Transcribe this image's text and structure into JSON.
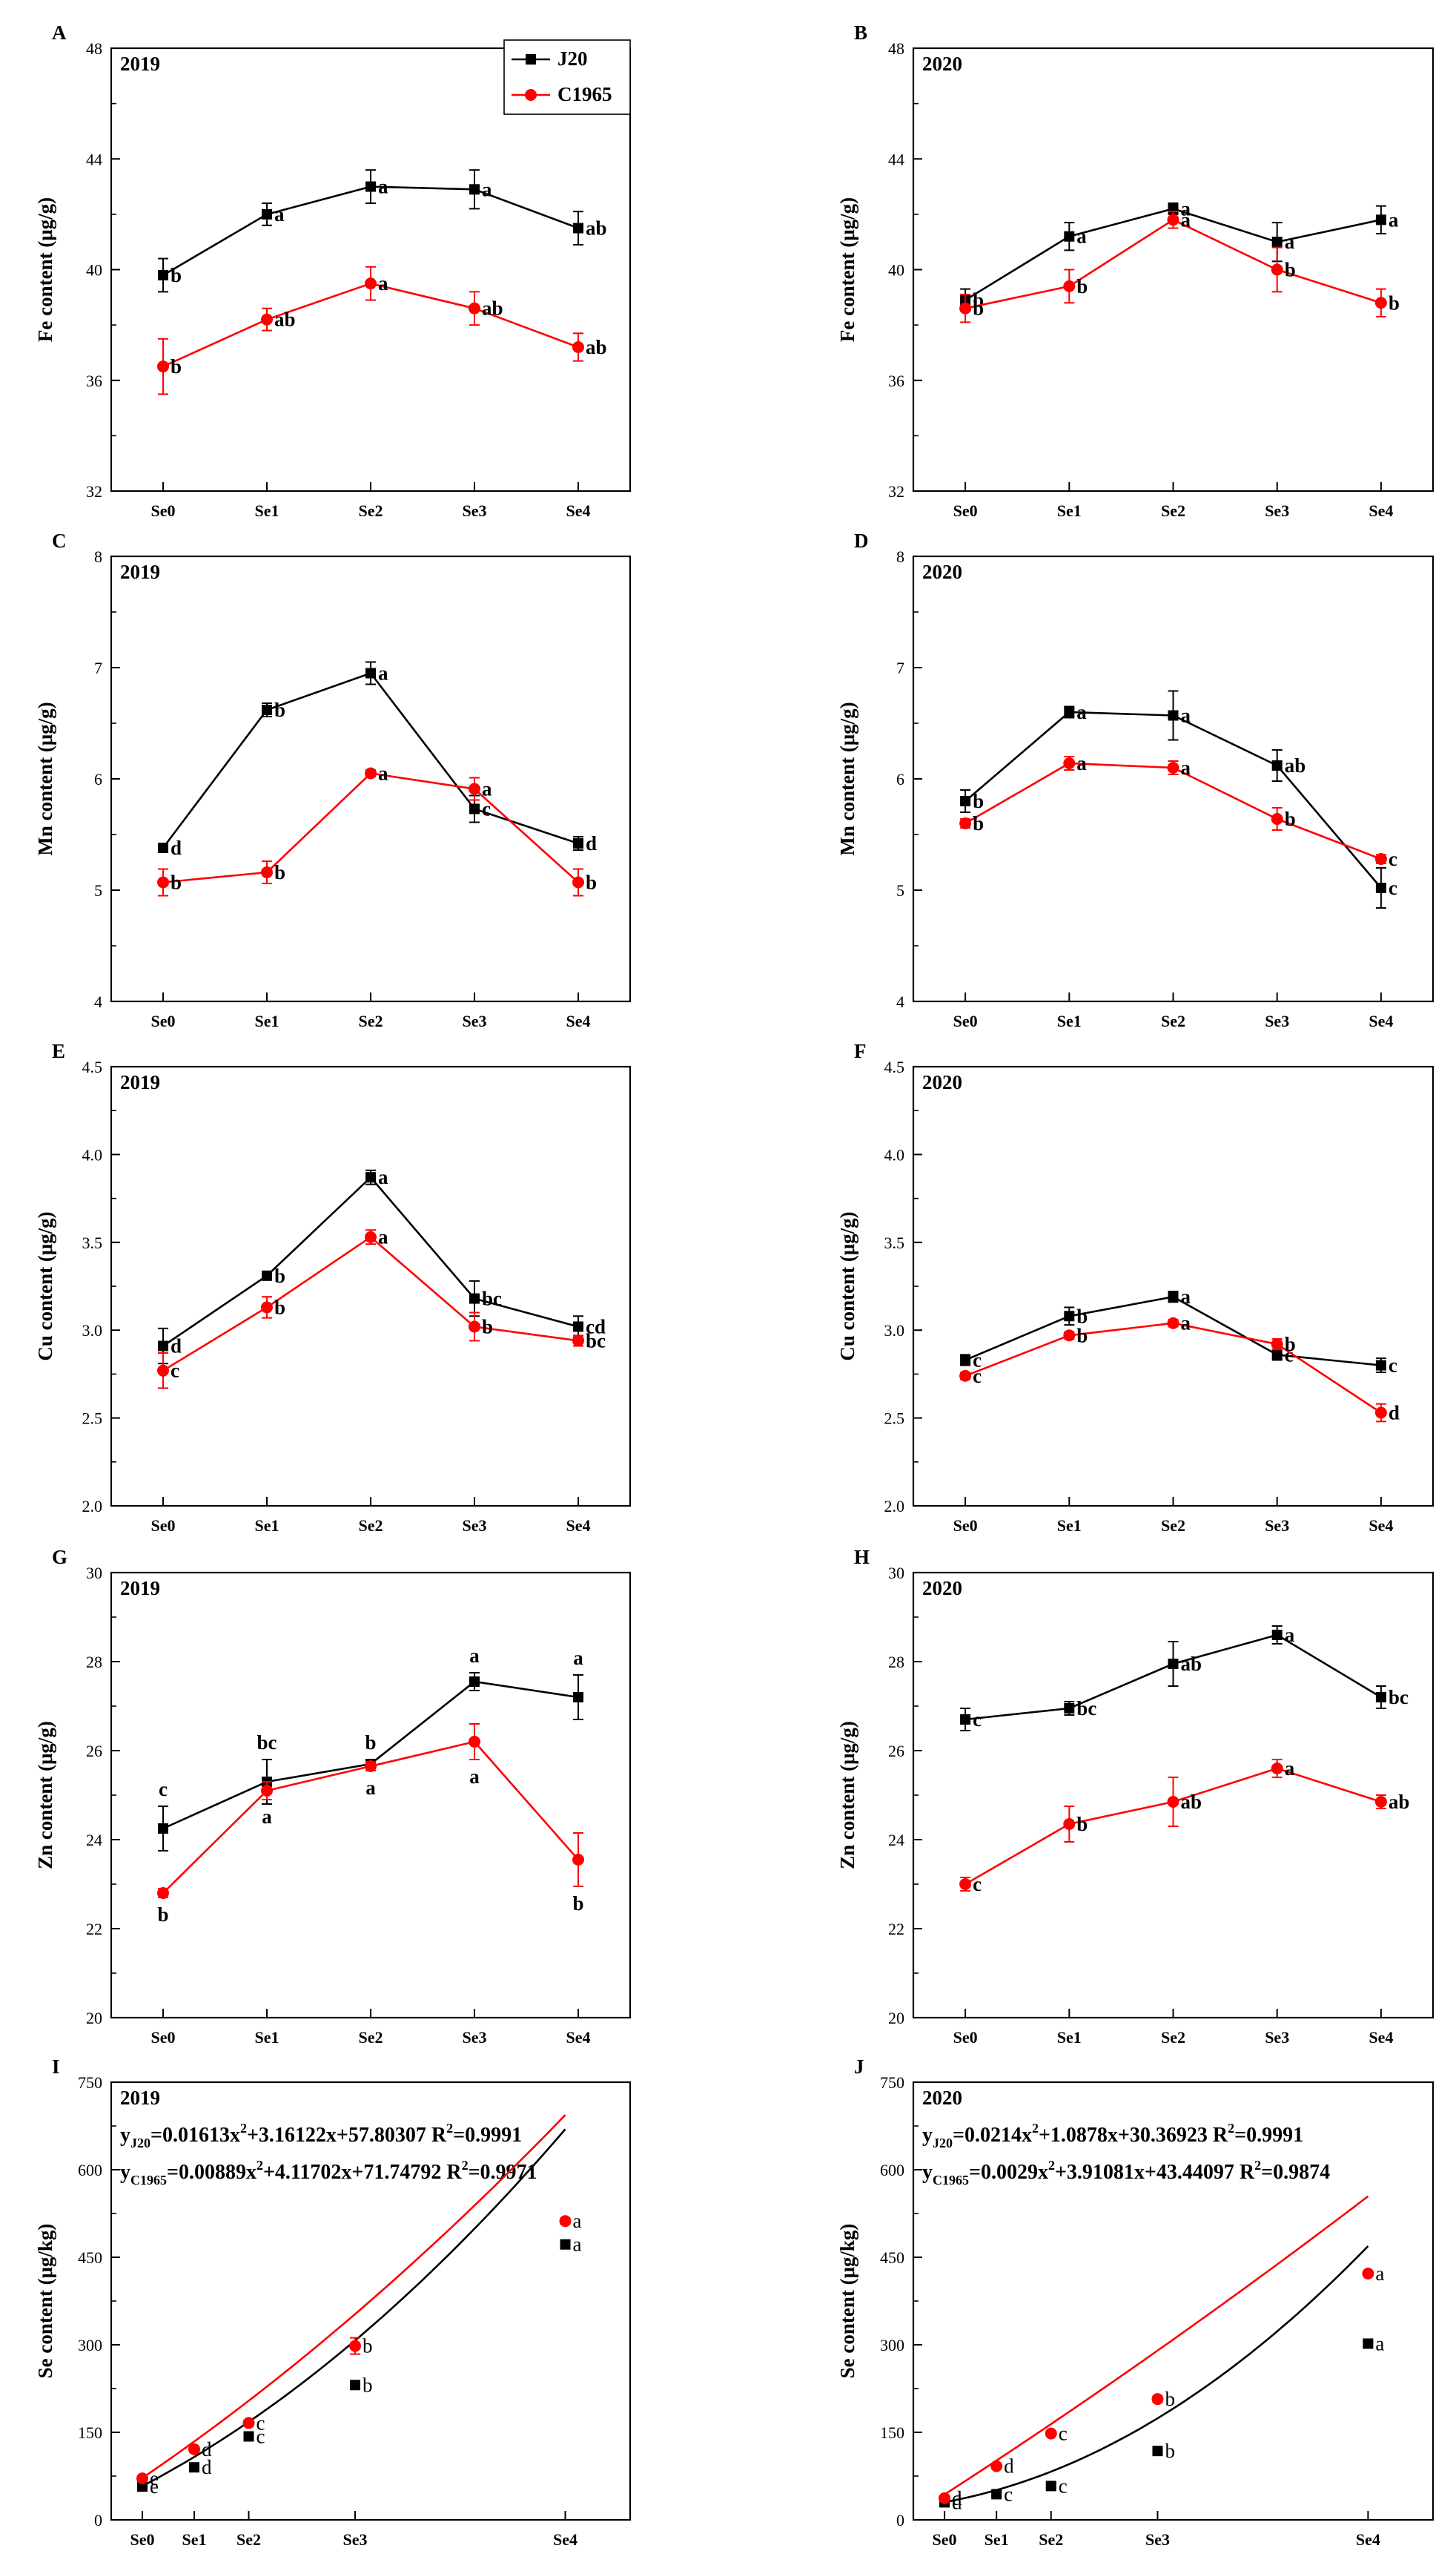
{
  "legend": [
    {
      "name": "J20",
      "color": "#000000",
      "marker": "square"
    },
    {
      "name": "C1965",
      "color": "#ff0000",
      "marker": "circle"
    }
  ],
  "chart_data": [
    {
      "id": "A",
      "panel_label": "A",
      "year_label": "2019",
      "type": "line",
      "ylabel": "Fe content (μg/g)",
      "categories": [
        "Se0",
        "Se1",
        "Se2",
        "Se3",
        "Se4"
      ],
      "ylim": [
        32,
        48
      ],
      "yticks": [
        "32",
        "36",
        "40",
        "44",
        "48"
      ],
      "series": [
        {
          "name": "J20",
          "values": [
            39.8,
            42.0,
            43.0,
            42.9,
            41.5
          ],
          "errors": [
            0.6,
            0.4,
            0.6,
            0.7,
            0.6
          ],
          "labels": [
            "b",
            "a",
            "a",
            "a",
            "ab"
          ]
        },
        {
          "name": "C1965",
          "values": [
            36.5,
            38.2,
            39.5,
            38.6,
            37.2
          ],
          "errors": [
            1.0,
            0.4,
            0.6,
            0.6,
            0.5
          ],
          "labels": [
            "b",
            "ab",
            "a",
            "ab",
            "ab"
          ]
        }
      ]
    },
    {
      "id": "B",
      "panel_label": "B",
      "year_label": "2020",
      "type": "line",
      "ylabel": "Fe content (μg/g)",
      "categories": [
        "Se0",
        "Se1",
        "Se2",
        "Se3",
        "Se4"
      ],
      "ylim": [
        32,
        48
      ],
      "yticks": [
        "32",
        "36",
        "40",
        "44",
        "48"
      ],
      "series": [
        {
          "name": "J20",
          "values": [
            38.9,
            41.2,
            42.2,
            41.0,
            41.8
          ],
          "errors": [
            0.4,
            0.5,
            0.2,
            0.7,
            0.5
          ],
          "labels": [
            "b",
            "a",
            "a",
            "a",
            "a"
          ]
        },
        {
          "name": "C1965",
          "values": [
            38.6,
            39.4,
            41.8,
            40.0,
            38.8
          ],
          "errors": [
            0.5,
            0.6,
            0.3,
            0.8,
            0.5
          ],
          "labels": [
            "b",
            "b",
            "a",
            "b",
            "b"
          ]
        }
      ]
    },
    {
      "id": "C",
      "panel_label": "C",
      "year_label": "2019",
      "type": "line",
      "ylabel": "Mn content (μg/g)",
      "categories": [
        "Se0",
        "Se1",
        "Se2",
        "Se3",
        "Se4"
      ],
      "ylim": [
        4,
        8
      ],
      "yticks": [
        "4",
        "5",
        "6",
        "7",
        "8"
      ],
      "series": [
        {
          "name": "J20",
          "values": [
            5.38,
            6.62,
            6.95,
            5.73,
            5.42
          ],
          "errors": [
            0.04,
            0.06,
            0.1,
            0.12,
            0.06
          ],
          "labels": [
            "d",
            "b",
            "a",
            "c",
            "d"
          ]
        },
        {
          "name": "C1965",
          "values": [
            5.07,
            5.16,
            6.05,
            5.91,
            5.07
          ],
          "errors": [
            0.12,
            0.1,
            0.03,
            0.1,
            0.12
          ],
          "labels": [
            "b",
            "b",
            "a",
            "a",
            "b"
          ]
        }
      ]
    },
    {
      "id": "D",
      "panel_label": "D",
      "year_label": "2020",
      "type": "line",
      "ylabel": "Mn content (μg/g)",
      "categories": [
        "Se0",
        "Se1",
        "Se2",
        "Se3",
        "Se4"
      ],
      "ylim": [
        4,
        8
      ],
      "yticks": [
        "4",
        "5",
        "6",
        "7",
        "8"
      ],
      "series": [
        {
          "name": "J20",
          "values": [
            5.8,
            6.6,
            6.57,
            6.12,
            5.02
          ],
          "errors": [
            0.1,
            0.05,
            0.22,
            0.14,
            0.18
          ],
          "labels": [
            "b",
            "a",
            "a",
            "ab",
            "c"
          ]
        },
        {
          "name": "C1965",
          "values": [
            5.6,
            6.14,
            6.1,
            5.64,
            5.28
          ],
          "errors": [
            0.04,
            0.06,
            0.06,
            0.1,
            0.04
          ],
          "labels": [
            "b",
            "a",
            "a",
            "b",
            "c"
          ]
        }
      ]
    },
    {
      "id": "E",
      "panel_label": "E",
      "year_label": "2019",
      "type": "line",
      "ylabel": "Cu content (μg/g)",
      "categories": [
        "Se0",
        "Se1",
        "Se2",
        "Se3",
        "Se4"
      ],
      "ylim": [
        2.0,
        4.5
      ],
      "yticks": [
        "2.0",
        "2.5",
        "3.0",
        "3.5",
        "4.0",
        "4.5"
      ],
      "series": [
        {
          "name": "J20",
          "values": [
            2.91,
            3.31,
            3.87,
            3.18,
            3.02
          ],
          "errors": [
            0.1,
            0.02,
            0.04,
            0.1,
            0.06
          ],
          "labels": [
            "d",
            "b",
            "a",
            "bc",
            "cd"
          ]
        },
        {
          "name": "C1965",
          "values": [
            2.77,
            3.13,
            3.53,
            3.02,
            2.94
          ],
          "errors": [
            0.1,
            0.06,
            0.04,
            0.08,
            0.03
          ],
          "labels": [
            "c",
            "b",
            "a",
            "b",
            "bc"
          ]
        }
      ]
    },
    {
      "id": "F",
      "panel_label": "F",
      "year_label": "2020",
      "type": "line",
      "ylabel": "Cu content (μg/g)",
      "categories": [
        "Se0",
        "Se1",
        "Se2",
        "Se3",
        "Se4"
      ],
      "ylim": [
        2.0,
        4.5
      ],
      "yticks": [
        "2.0",
        "2.5",
        "3.0",
        "3.5",
        "4.0",
        "4.5"
      ],
      "series": [
        {
          "name": "J20",
          "values": [
            2.83,
            3.08,
            3.19,
            2.86,
            2.8
          ],
          "errors": [
            0.03,
            0.05,
            0.03,
            0.03,
            0.04
          ],
          "labels": [
            "c",
            "b",
            "a",
            "c",
            "c"
          ]
        },
        {
          "name": "C1965",
          "values": [
            2.74,
            2.97,
            3.04,
            2.92,
            2.53
          ],
          "errors": [
            0.02,
            0.02,
            0.02,
            0.03,
            0.05
          ],
          "labels": [
            "c",
            "b",
            "a",
            "b",
            "d"
          ]
        }
      ]
    },
    {
      "id": "G",
      "panel_label": "G",
      "year_label": "2019",
      "type": "line",
      "ylabel": "Zn content (μg/g)",
      "categories": [
        "Se0",
        "Se1",
        "Se2",
        "Se3",
        "Se4"
      ],
      "ylim": [
        20,
        30
      ],
      "yticks": [
        "20",
        "22",
        "24",
        "26",
        "28",
        "30"
      ],
      "series": [
        {
          "name": "J20",
          "values": [
            24.25,
            25.3,
            25.7,
            27.55,
            27.2
          ],
          "errors": [
            0.5,
            0.5,
            0.1,
            0.2,
            0.5
          ],
          "labels": [
            "c",
            "bc",
            "b",
            "a",
            "a"
          ],
          "label_pos": [
            "above",
            "above",
            "above",
            "above",
            "above"
          ]
        },
        {
          "name": "C1965",
          "values": [
            22.8,
            25.1,
            25.65,
            26.2,
            23.55
          ],
          "errors": [
            0.1,
            0.2,
            0.1,
            0.4,
            0.6
          ],
          "labels": [
            "b",
            "a",
            "a",
            "a",
            "b"
          ],
          "label_pos": [
            "below",
            "below",
            "below",
            "below",
            "below"
          ]
        }
      ]
    },
    {
      "id": "H",
      "panel_label": "H",
      "year_label": "2020",
      "type": "line",
      "ylabel": "Zn content (μg/g)",
      "categories": [
        "Se0",
        "Se1",
        "Se2",
        "Se3",
        "Se4"
      ],
      "ylim": [
        20,
        30
      ],
      "yticks": [
        "20",
        "22",
        "24",
        "26",
        "28",
        "30"
      ],
      "series": [
        {
          "name": "J20",
          "values": [
            26.7,
            26.95,
            27.95,
            28.6,
            27.2
          ],
          "errors": [
            0.25,
            0.15,
            0.5,
            0.2,
            0.25
          ],
          "labels": [
            "c",
            "bc",
            "ab",
            "a",
            "bc"
          ]
        },
        {
          "name": "C1965",
          "values": [
            23.0,
            24.35,
            24.85,
            25.6,
            24.85
          ],
          "errors": [
            0.15,
            0.4,
            0.55,
            0.2,
            0.15
          ],
          "labels": [
            "c",
            "b",
            "ab",
            "a",
            "ab"
          ]
        }
      ]
    },
    {
      "id": "I",
      "panel_label": "I",
      "year_label": "2019",
      "type": "scatter",
      "ylabel": "Se content (μg/kg)",
      "categories": [
        "Se0",
        "Se1",
        "Se2",
        "Se3",
        "Se4"
      ],
      "x": [
        0,
        15,
        30,
        60,
        120
      ],
      "ylim": [
        0,
        750
      ],
      "yticks": [
        "0",
        "150",
        "300",
        "450",
        "600",
        "750"
      ],
      "equations": [
        {
          "lhs": "y",
          "sub": "J20",
          "rhs": "=0.01613x",
          "sup": "2",
          "rest": "+3.16122x+57.80307 R",
          "sup2": "2",
          "tail": "=0.9991"
        },
        {
          "lhs": "y",
          "sub": "C1965",
          "rhs": "=0.00889x",
          "sup": "2",
          "rest": "+4.11702x+71.74792 R",
          "sup2": "2",
          "tail": "=0.9971"
        }
      ],
      "series": [
        {
          "name": "J20",
          "values": [
            57,
            90,
            143,
            231,
            472
          ],
          "errors": [
            4,
            4,
            5,
            5,
            4
          ],
          "labels": [
            "e",
            "d",
            "c",
            "b",
            "a"
          ],
          "fit": [
            0.01613,
            3.16122,
            57.80307
          ]
        },
        {
          "name": "C1965",
          "values": [
            71,
            121,
            166,
            298,
            512
          ],
          "errors": [
            4,
            5,
            5,
            14,
            5
          ],
          "labels": [
            "e",
            "d",
            "c",
            "b",
            "a"
          ],
          "fit": [
            0.00889,
            4.11702,
            71.74792
          ]
        }
      ]
    },
    {
      "id": "J",
      "panel_label": "J",
      "year_label": "2020",
      "type": "scatter",
      "ylabel": "Se content (μg/kg)",
      "categories": [
        "Se0",
        "Se1",
        "Se2",
        "Se3",
        "Se4"
      ],
      "x": [
        0,
        15,
        30,
        60,
        120
      ],
      "ylim": [
        0,
        750
      ],
      "yticks": [
        "0",
        "150",
        "300",
        "450",
        "600",
        "750"
      ],
      "equations": [
        {
          "lhs": "y",
          "sub": "J20",
          "rhs": "=0.0214x",
          "sup": "2",
          "rest": "+1.0878x+30.36923 R",
          "sup2": "2",
          "tail": "=0.9991"
        },
        {
          "lhs": "y",
          "sub": "C1965",
          "rhs": "=0.0029x",
          "sup": "2",
          "rest": "+3.91081x+43.44097 R",
          "sup2": "2",
          "tail": "=0.9874"
        }
      ],
      "series": [
        {
          "name": "J20",
          "values": [
            30,
            44,
            58,
            118,
            302
          ],
          "errors": [
            3,
            3,
            3,
            5,
            4
          ],
          "labels": [
            "d",
            "c",
            "c",
            "b",
            "a"
          ],
          "fit": [
            0.0214,
            1.0878,
            30.36923
          ]
        },
        {
          "name": "C1965",
          "values": [
            37,
            92,
            148,
            207,
            422
          ],
          "errors": [
            3,
            4,
            4,
            5,
            4
          ],
          "labels": [
            "d",
            "d",
            "c",
            "b",
            "a"
          ],
          "fit": [
            0.0029,
            3.91081,
            43.44097
          ]
        }
      ]
    }
  ]
}
